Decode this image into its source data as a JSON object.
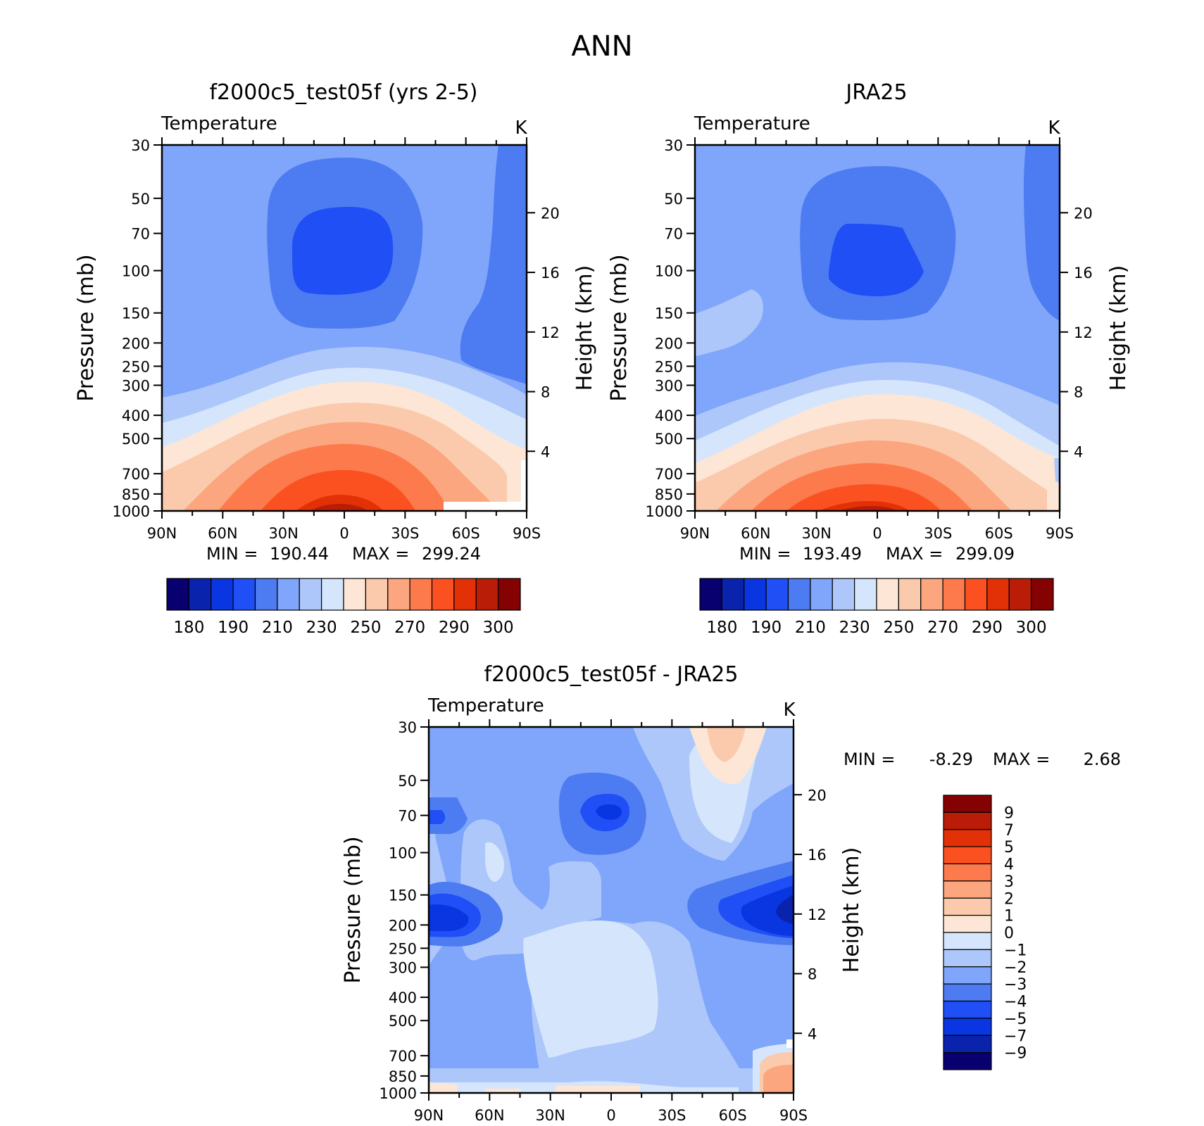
{
  "figure": {
    "title": "ANN"
  },
  "chart_data": [
    {
      "type": "contour",
      "title": "f2000c5_test05f (yrs 2-5)",
      "left_label": "Temperature",
      "units": "K",
      "ylabel": "Pressure (mb)",
      "ylabel_right": "Height (km)",
      "x_ticks": [
        "90N",
        "60N",
        "30N",
        "0",
        "30S",
        "60S",
        "90S"
      ],
      "y_ticks": [
        30,
        50,
        70,
        100,
        150,
        200,
        250,
        300,
        400,
        500,
        700,
        850,
        1000
      ],
      "height_ticks": [
        4,
        8,
        12,
        16,
        20
      ],
      "stats": {
        "min_label": "MIN =",
        "min": "190.44",
        "max_label": "MAX =",
        "max": "299.24"
      },
      "colorbar": {
        "orientation": "horizontal",
        "labels": [
          "180",
          "190",
          "210",
          "230",
          "250",
          "270",
          "290",
          "300"
        ],
        "colors": [
          "#08006e",
          "#0a23ad",
          "#0a36e2",
          "#1f4ff5",
          "#4d7cf2",
          "#7fa6fa",
          "#aec7fb",
          "#d5e6fc",
          "#fde6d5",
          "#fbc9ac",
          "#fba67e",
          "#fd7a4c",
          "#fb5121",
          "#e23107",
          "#b91d07",
          "#850202"
        ]
      }
    },
    {
      "type": "contour",
      "title": "JRA25",
      "left_label": "Temperature",
      "units": "K",
      "ylabel": "Pressure (mb)",
      "ylabel_right": "Height (km)",
      "x_ticks": [
        "90N",
        "60N",
        "30N",
        "0",
        "30S",
        "60S",
        "90S"
      ],
      "y_ticks": [
        30,
        50,
        70,
        100,
        150,
        200,
        250,
        300,
        400,
        500,
        700,
        850,
        1000
      ],
      "height_ticks": [
        4,
        8,
        12,
        16,
        20
      ],
      "stats": {
        "min_label": "MIN =",
        "min": "193.49",
        "max_label": "MAX =",
        "max": "299.09"
      },
      "colorbar": {
        "orientation": "horizontal",
        "labels": [
          "180",
          "190",
          "210",
          "230",
          "250",
          "270",
          "290",
          "300"
        ],
        "colors": [
          "#08006e",
          "#0a23ad",
          "#0a36e2",
          "#1f4ff5",
          "#4d7cf2",
          "#7fa6fa",
          "#aec7fb",
          "#d5e6fc",
          "#fde6d5",
          "#fbc9ac",
          "#fba67e",
          "#fd7a4c",
          "#fb5121",
          "#e23107",
          "#b91d07",
          "#850202"
        ]
      }
    },
    {
      "type": "contour",
      "title": "f2000c5_test05f - JRA25",
      "left_label": "Temperature",
      "units": "K",
      "ylabel": "Pressure (mb)",
      "ylabel_right": "Height (km)",
      "x_ticks": [
        "90N",
        "60N",
        "30N",
        "0",
        "30S",
        "60S",
        "90S"
      ],
      "y_ticks": [
        30,
        50,
        70,
        100,
        150,
        200,
        250,
        300,
        400,
        500,
        700,
        850,
        1000
      ],
      "height_ticks": [
        4,
        8,
        12,
        16,
        20
      ],
      "stats": {
        "min_label": "MIN =",
        "min": "-8.29",
        "max_label": "MAX =",
        "max": "2.68"
      },
      "colorbar": {
        "orientation": "vertical",
        "labels": [
          "9",
          "7",
          "5",
          "4",
          "3",
          "2",
          "1",
          "0",
          "−1",
          "−2",
          "−3",
          "−4",
          "−5",
          "−7",
          "−9"
        ],
        "colors": [
          "#850202",
          "#b91d07",
          "#e23107",
          "#fb5121",
          "#fd7a4c",
          "#fba67e",
          "#fbc9ac",
          "#fde6d5",
          "#d5e6fc",
          "#aec7fb",
          "#7fa6fa",
          "#4d7cf2",
          "#1f4ff5",
          "#0a36e2",
          "#0a23ad",
          "#08006e"
        ]
      }
    }
  ]
}
